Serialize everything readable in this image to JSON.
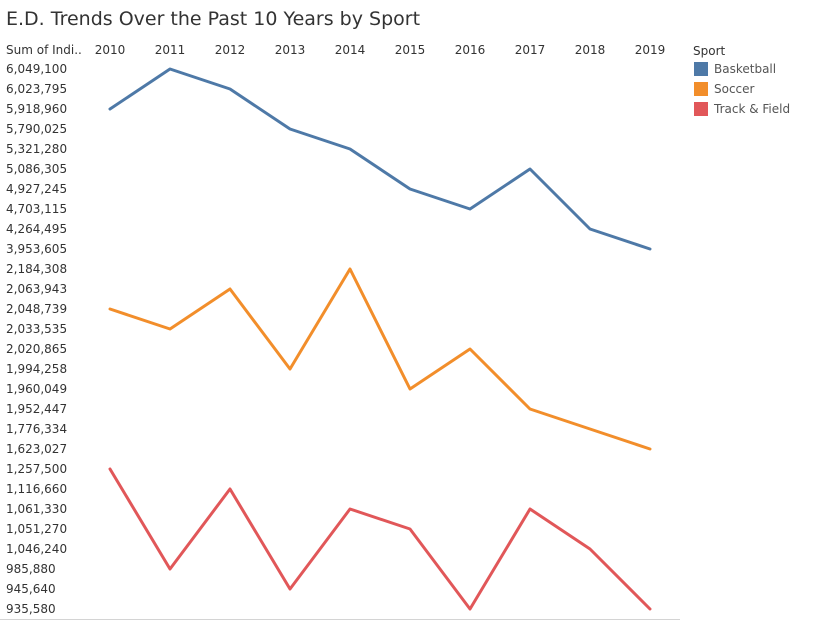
{
  "chart_data": {
    "type": "line",
    "title": "E.D. Trends Over the Past 10 Years by Sport",
    "ylabel": "Sum of Indi..",
    "x": [
      "2010",
      "2011",
      "2012",
      "2013",
      "2014",
      "2015",
      "2016",
      "2017",
      "2018",
      "2019"
    ],
    "y_tick_labels": [
      "6,049,100",
      "6,023,795",
      "5,918,960",
      "5,790,025",
      "5,321,280",
      "5,086,305",
      "4,927,245",
      "4,703,115",
      "4,264,495",
      "3,953,605",
      "2,184,308",
      "2,063,943",
      "2,048,739",
      "2,033,535",
      "2,020,865",
      "1,994,258",
      "1,960,049",
      "1,952,447",
      "1,776,334",
      "1,623,027",
      "1,257,500",
      "1,116,660",
      "1,061,330",
      "1,051,270",
      "1,046,240",
      "985,880",
      "945,640",
      "935,580"
    ],
    "legend_title": "Sport",
    "legend_position": "right",
    "grid": false,
    "series": [
      {
        "name": "Basketball",
        "color": "#4e79a7",
        "values": [
          5918960,
          6049100,
          6023795,
          5790025,
          5321280,
          4927245,
          4703115,
          5086305,
          4264495,
          3953605
        ]
      },
      {
        "name": "Soccer",
        "color": "#f28e2b",
        "values": [
          2048739,
          2033535,
          2063943,
          1994258,
          2184308,
          1960049,
          2020865,
          1952447,
          1776334,
          1623027
        ]
      },
      {
        "name": "Track & Field",
        "color": "#e15759",
        "values": [
          1257500,
          985880,
          1116660,
          945640,
          1061330,
          1051270,
          935580,
          1061330,
          1046240,
          935580
        ]
      }
    ]
  }
}
